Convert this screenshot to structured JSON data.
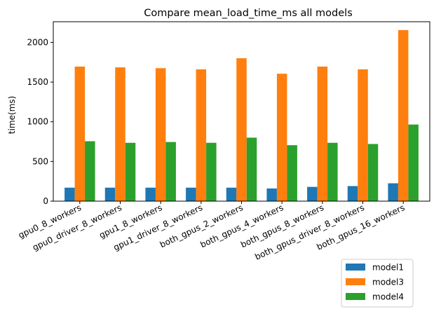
{
  "chart_data": {
    "type": "bar",
    "title": "Compare mean_load_time_ms all models",
    "xlabel": "",
    "ylabel": "time(ms)",
    "ylim": [
      0,
      2260
    ],
    "yticks": [
      0,
      500,
      1000,
      1500,
      2000
    ],
    "categories": [
      "gpu0_8_workers",
      "gpu0_driver_8_workers",
      "gpu1_8_workers",
      "gpu1_driver_8_workers",
      "both_gpus_2_workers",
      "both_gpus_4_workers",
      "both_gpus_8_workers",
      "both_gpus_driver_8_workers",
      "both_gpus_16_workers"
    ],
    "series": [
      {
        "name": "model1",
        "color": "#1f77b4",
        "values": [
          170,
          170,
          170,
          170,
          170,
          160,
          180,
          190,
          225
        ]
      },
      {
        "name": "model3",
        "color": "#ff7f0e",
        "values": [
          1695,
          1685,
          1675,
          1660,
          1800,
          1605,
          1695,
          1660,
          2155
        ]
      },
      {
        "name": "model4",
        "color": "#2ca02c",
        "values": [
          755,
          735,
          745,
          735,
          800,
          705,
          735,
          720,
          965
        ]
      }
    ],
    "grid": false,
    "legend_position": "bottom-right"
  }
}
